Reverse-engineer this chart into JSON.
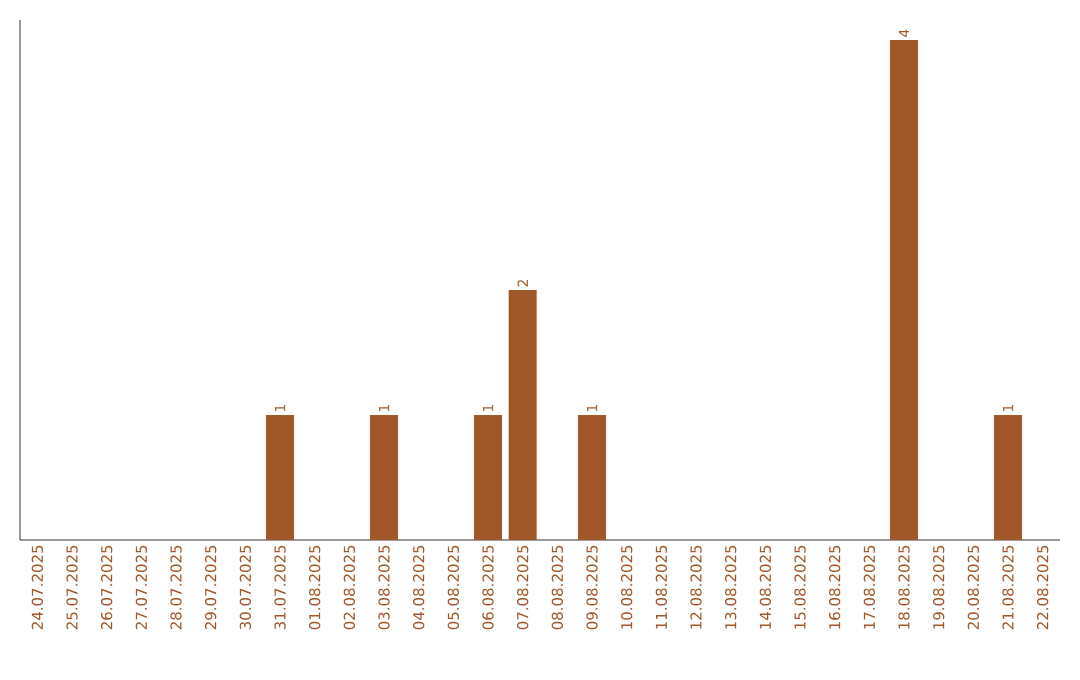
{
  "chart_data": {
    "type": "bar",
    "color": "#a0572a",
    "categories": [
      "24.07.2025",
      "25.07.2025",
      "26.07.2025",
      "27.07.2025",
      "28.07.2025",
      "29.07.2025",
      "30.07.2025",
      "31.07.2025",
      "01.08.2025",
      "02.08.2025",
      "03.08.2025",
      "04.08.2025",
      "05.08.2025",
      "06.08.2025",
      "07.08.2025",
      "08.08.2025",
      "09.08.2025",
      "10.08.2025",
      "11.08.2025",
      "12.08.2025",
      "13.08.2025",
      "14.08.2025",
      "15.08.2025",
      "16.08.2025",
      "17.08.2025",
      "18.08.2025",
      "19.08.2025",
      "20.08.2025",
      "21.08.2025",
      "22.08.2025"
    ],
    "values": [
      0,
      0,
      0,
      0,
      0,
      0,
      0,
      1,
      0,
      0,
      1,
      0,
      0,
      1,
      2,
      0,
      1,
      0,
      0,
      0,
      0,
      0,
      0,
      0,
      0,
      4,
      0,
      0,
      1,
      0
    ],
    "value_labels": [
      null,
      null,
      null,
      null,
      null,
      null,
      null,
      "1",
      null,
      null,
      "1",
      null,
      null,
      "1",
      "2",
      null,
      "1",
      null,
      null,
      null,
      null,
      null,
      null,
      null,
      null,
      "4",
      null,
      null,
      "1",
      null
    ],
    "tick_labels": "x"
  }
}
